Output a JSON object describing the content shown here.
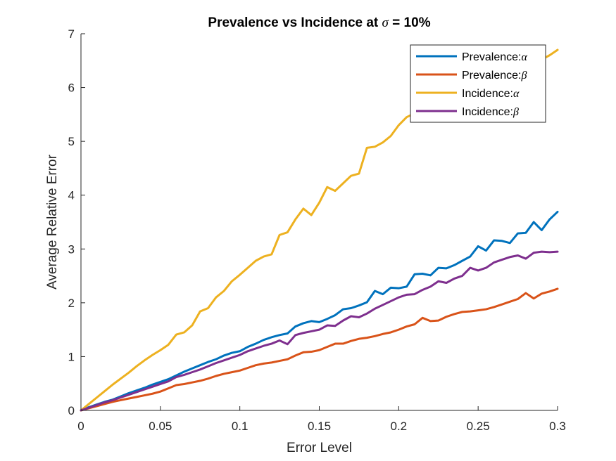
{
  "chart_data": {
    "type": "line",
    "title": "Prevalence vs Incidence at σ = 10%",
    "title_parts": {
      "prefix": "Prevalence vs Incidence at ",
      "symbol": "σ",
      "suffix": " = 10%"
    },
    "xlabel": "Error Level",
    "ylabel": "Average Relative Error",
    "xlim": [
      0,
      0.3
    ],
    "ylim": [
      0,
      7
    ],
    "xticks": [
      0,
      0.05,
      0.1,
      0.15,
      0.2,
      0.25,
      0.3
    ],
    "xtick_labels": [
      "0",
      "0.05",
      "0.1",
      "0.15",
      "0.2",
      "0.25",
      "0.3"
    ],
    "yticks": [
      0,
      1,
      2,
      3,
      4,
      5,
      6,
      7
    ],
    "ytick_labels": [
      "0",
      "1",
      "2",
      "3",
      "4",
      "5",
      "6",
      "7"
    ],
    "grid": false,
    "legend_position": "top-right",
    "x": [
      0,
      0.005,
      0.01,
      0.015,
      0.02,
      0.025,
      0.03,
      0.035,
      0.04,
      0.045,
      0.05,
      0.055,
      0.06,
      0.065,
      0.07,
      0.075,
      0.08,
      0.085,
      0.09,
      0.095,
      0.1,
      0.105,
      0.11,
      0.115,
      0.12,
      0.125,
      0.13,
      0.135,
      0.14,
      0.145,
      0.15,
      0.155,
      0.16,
      0.165,
      0.17,
      0.175,
      0.18,
      0.185,
      0.19,
      0.195,
      0.2,
      0.205,
      0.21,
      0.215,
      0.22,
      0.225,
      0.23,
      0.235,
      0.24,
      0.245,
      0.25,
      0.255,
      0.26,
      0.265,
      0.27,
      0.275,
      0.28,
      0.285,
      0.29,
      0.295,
      0.3
    ],
    "series": [
      {
        "name": "Prevalence:α",
        "label_prefix": "Prevalence:",
        "label_symbol": "α",
        "color": "#0072BD",
        "values": [
          0,
          0.06,
          0.11,
          0.16,
          0.2,
          0.26,
          0.32,
          0.37,
          0.42,
          0.48,
          0.53,
          0.58,
          0.65,
          0.72,
          0.78,
          0.84,
          0.9,
          0.95,
          1.02,
          1.07,
          1.1,
          1.18,
          1.24,
          1.31,
          1.36,
          1.4,
          1.43,
          1.56,
          1.62,
          1.66,
          1.64,
          1.7,
          1.77,
          1.88,
          1.9,
          1.95,
          2.01,
          2.22,
          2.16,
          2.28,
          2.27,
          2.3,
          2.53,
          2.54,
          2.51,
          2.65,
          2.64,
          2.7,
          2.78,
          2.86,
          3.05,
          2.97,
          3.16,
          3.15,
          3.11,
          3.29,
          3.3,
          3.5,
          3.35,
          3.55,
          3.69
        ]
      },
      {
        "name": "Prevalence:β",
        "label_prefix": "Prevalence:",
        "label_symbol": "β",
        "color": "#D95319",
        "values": [
          0,
          0.04,
          0.08,
          0.12,
          0.16,
          0.19,
          0.22,
          0.25,
          0.28,
          0.31,
          0.35,
          0.41,
          0.47,
          0.49,
          0.52,
          0.55,
          0.59,
          0.64,
          0.68,
          0.71,
          0.74,
          0.79,
          0.84,
          0.87,
          0.89,
          0.92,
          0.95,
          1.02,
          1.08,
          1.09,
          1.12,
          1.18,
          1.24,
          1.24,
          1.29,
          1.33,
          1.35,
          1.38,
          1.42,
          1.45,
          1.5,
          1.56,
          1.6,
          1.72,
          1.66,
          1.67,
          1.74,
          1.79,
          1.83,
          1.84,
          1.86,
          1.88,
          1.92,
          1.97,
          2.02,
          2.07,
          2.18,
          2.08,
          2.17,
          2.21,
          2.26
        ]
      },
      {
        "name": "Incidence:α",
        "label_prefix": "Incidence:",
        "label_symbol": "α",
        "color": "#EDB120",
        "values": [
          0,
          0.12,
          0.24,
          0.36,
          0.48,
          0.59,
          0.7,
          0.82,
          0.93,
          1.03,
          1.12,
          1.22,
          1.41,
          1.45,
          1.58,
          1.84,
          1.9,
          2.1,
          2.22,
          2.4,
          2.52,
          2.65,
          2.78,
          2.86,
          2.9,
          3.26,
          3.31,
          3.55,
          3.75,
          3.63,
          3.86,
          4.15,
          4.08,
          4.22,
          4.36,
          4.4,
          4.88,
          4.9,
          4.98,
          5.1,
          5.3,
          5.45,
          5.52,
          5.62,
          5.75,
          5.85,
          5.92,
          6.0,
          6.08,
          6.15,
          6.22,
          6.28,
          6.32,
          6.38,
          6.42,
          6.46,
          6.5,
          6.42,
          6.52,
          6.6,
          6.7
        ]
      },
      {
        "name": "Incidence:β",
        "label_prefix": "Incidence:",
        "label_symbol": "β",
        "color": "#7E2F8E",
        "values": [
          0,
          0.05,
          0.1,
          0.15,
          0.19,
          0.24,
          0.29,
          0.34,
          0.39,
          0.44,
          0.49,
          0.54,
          0.62,
          0.66,
          0.71,
          0.76,
          0.82,
          0.88,
          0.93,
          0.98,
          1.03,
          1.1,
          1.15,
          1.2,
          1.24,
          1.3,
          1.23,
          1.4,
          1.44,
          1.47,
          1.5,
          1.58,
          1.57,
          1.67,
          1.75,
          1.73,
          1.8,
          1.89,
          1.96,
          2.03,
          2.1,
          2.15,
          2.16,
          2.24,
          2.3,
          2.4,
          2.37,
          2.45,
          2.5,
          2.65,
          2.6,
          2.65,
          2.75,
          2.8,
          2.85,
          2.88,
          2.82,
          2.93,
          2.95,
          2.94,
          2.95
        ]
      }
    ]
  }
}
